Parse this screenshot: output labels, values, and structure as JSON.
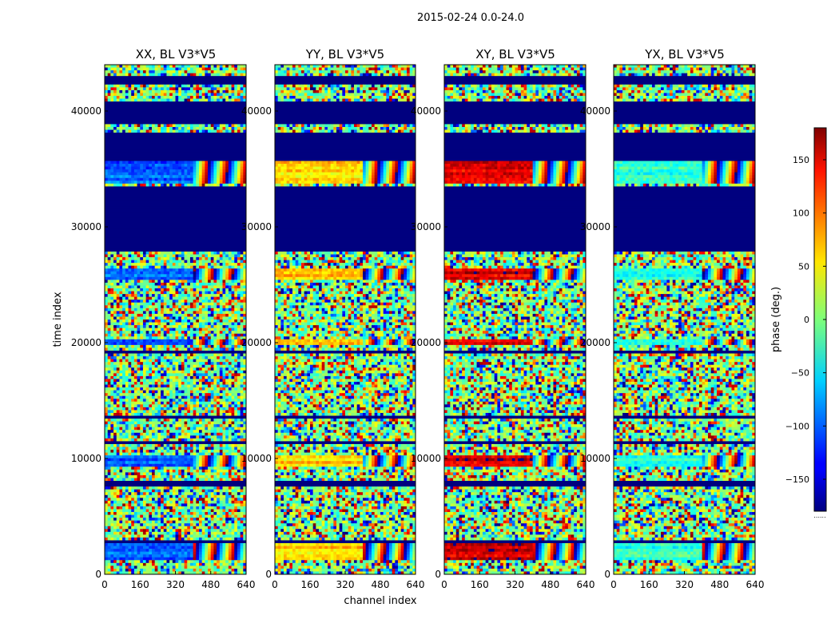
{
  "figure_title": "2015-02-24 0.0-24.0",
  "chart_data": {
    "type": "heatmap",
    "xlabel": "channel index",
    "ylabel": "time index",
    "xlim": [
      0,
      640
    ],
    "ylim": [
      0,
      44000
    ],
    "x_ticks": [
      0,
      160,
      320,
      480,
      640
    ],
    "y_ticks": [
      0,
      10000,
      20000,
      30000,
      40000
    ],
    "colorbar": {
      "label": "phase (deg.)",
      "range": [
        -180,
        180
      ],
      "ticks": [
        -150,
        -100,
        -50,
        0,
        50,
        100,
        150
      ],
      "tick_labels": [
        "−150",
        "−100",
        "−50",
        "0",
        "50",
        "100",
        "150"
      ],
      "colormap": "jet",
      "footer": "......"
    },
    "panels": [
      {
        "title": "XX, BL V3*V5",
        "pol": "XX",
        "base_phase": -100
      },
      {
        "title": "YY, BL V3*V5",
        "pol": "YY",
        "base_phase": 60
      },
      {
        "title": "XY, BL V3*V5",
        "pol": "XY",
        "base_phase": 150
      },
      {
        "title": "YX, BL V3*V5",
        "pol": "YX",
        "base_phase": -30
      }
    ],
    "flagged_time_ranges": [
      [
        2700,
        2900
      ],
      [
        7700,
        8000
      ],
      [
        11200,
        11500
      ],
      [
        13500,
        13800
      ],
      [
        19000,
        19300
      ],
      [
        27800,
        29500
      ],
      [
        29700,
        33500
      ],
      [
        35800,
        36800
      ],
      [
        37000,
        38200
      ],
      [
        38800,
        40800
      ],
      [
        42200,
        43000
      ],
      [
        43400,
        43600
      ]
    ],
    "coherent_time_ranges": [
      [
        1200,
        2600
      ],
      [
        9300,
        10300
      ],
      [
        19800,
        20300
      ],
      [
        25500,
        26300
      ],
      [
        33800,
        36000
      ]
    ]
  }
}
